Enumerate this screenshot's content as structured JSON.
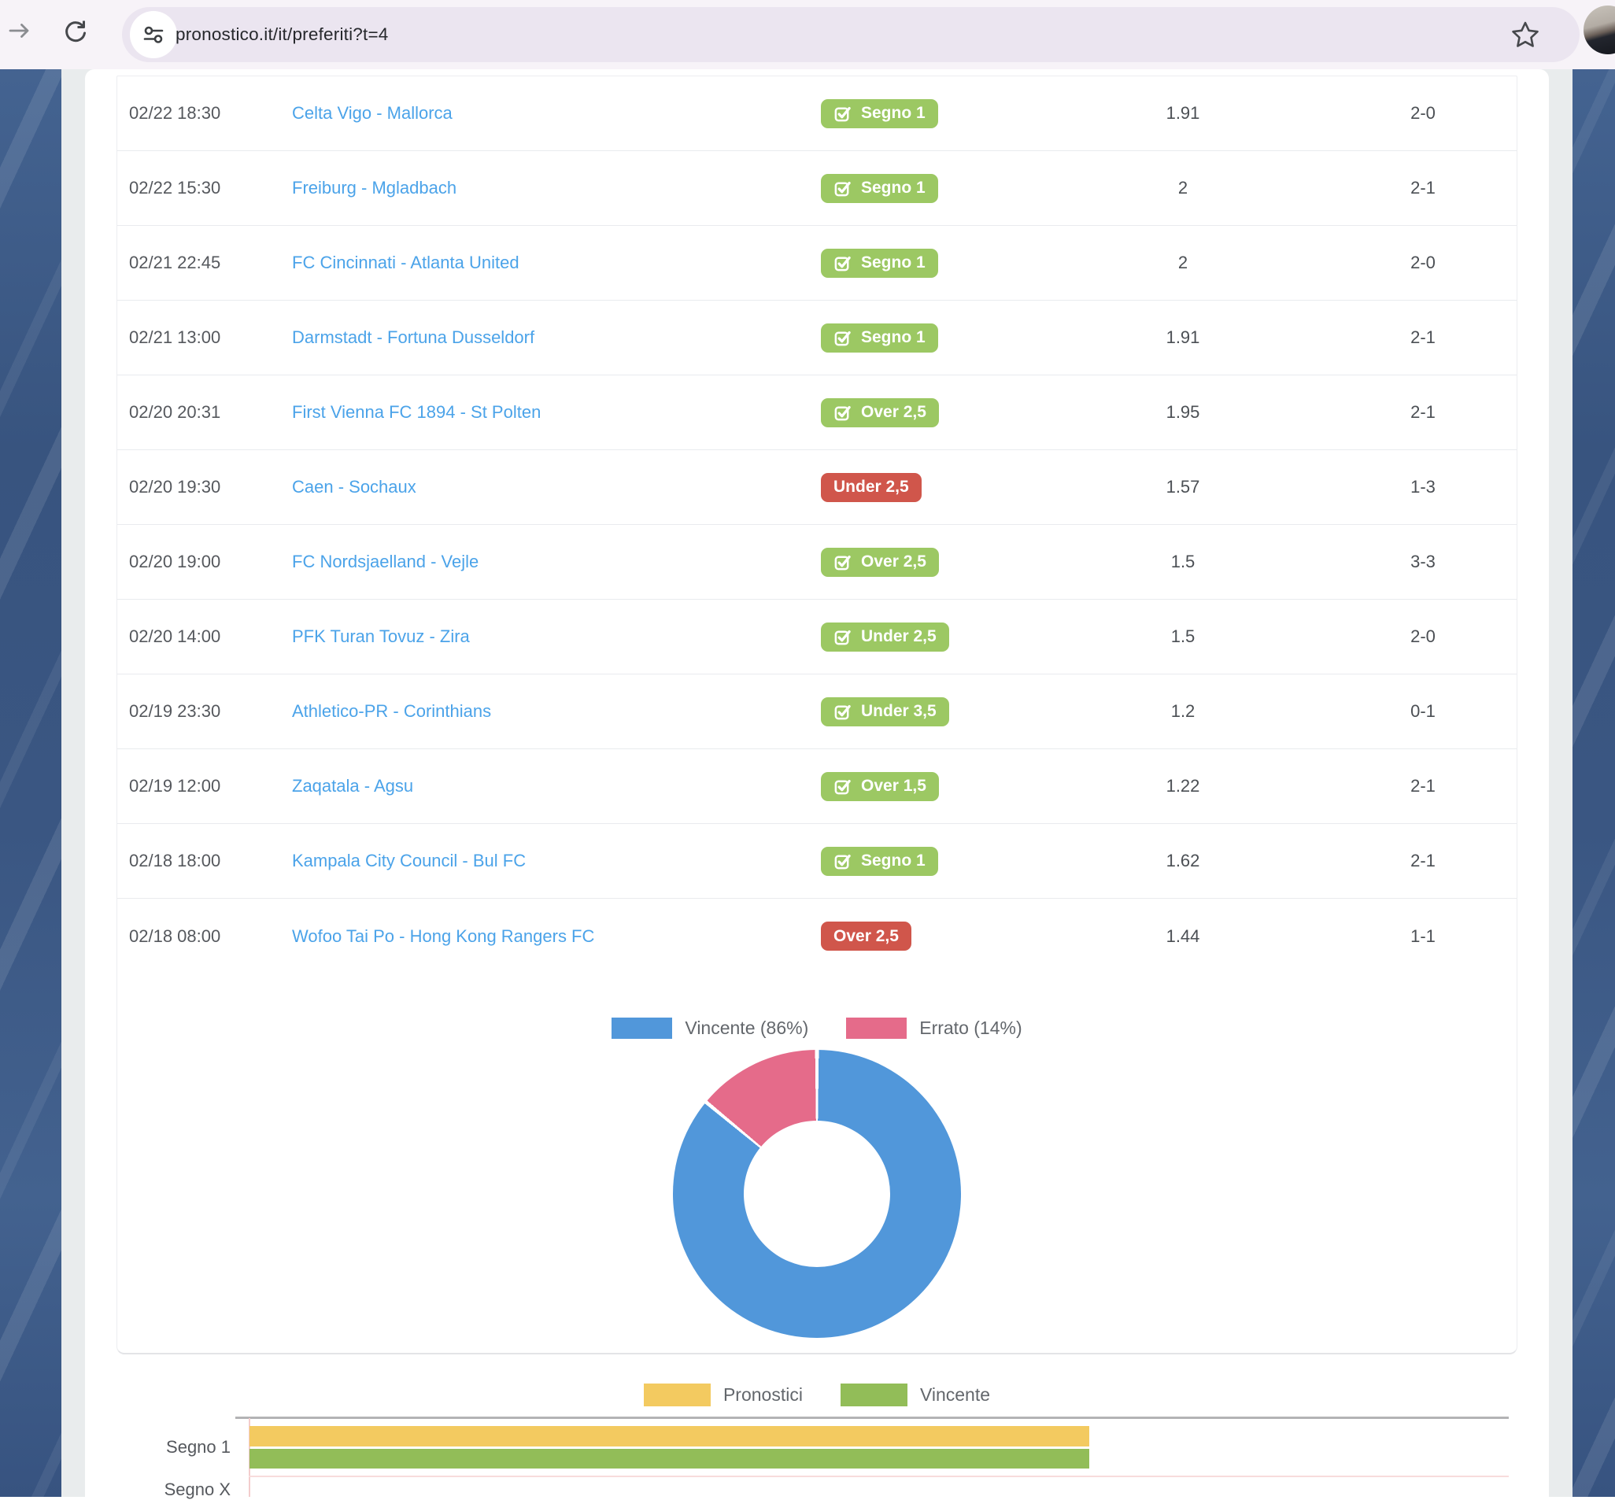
{
  "browser": {
    "url": "pronostico.it/it/preferiti?t=4",
    "icons": [
      "forward-arrow",
      "reload",
      "tune",
      "bookmark-star",
      "profile-avatar"
    ]
  },
  "table": {
    "rows": [
      {
        "time": "02/22 18:30",
        "match": "Celta Vigo - Mallorca",
        "bet": "Segno 1",
        "won": true,
        "odds": "1.91",
        "result": "2-0"
      },
      {
        "time": "02/22 15:30",
        "match": "Freiburg - Mgladbach",
        "bet": "Segno 1",
        "won": true,
        "odds": "2",
        "result": "2-1"
      },
      {
        "time": "02/21 22:45",
        "match": "FC Cincinnati - Atlanta United",
        "bet": "Segno 1",
        "won": true,
        "odds": "2",
        "result": "2-0"
      },
      {
        "time": "02/21 13:00",
        "match": "Darmstadt - Fortuna Dusseldorf",
        "bet": "Segno 1",
        "won": true,
        "odds": "1.91",
        "result": "2-1"
      },
      {
        "time": "02/20 20:31",
        "match": "First Vienna FC 1894 - St Polten",
        "bet": "Over 2,5",
        "won": true,
        "odds": "1.95",
        "result": "2-1"
      },
      {
        "time": "02/20 19:30",
        "match": "Caen - Sochaux",
        "bet": "Under 2,5",
        "won": false,
        "odds": "1.57",
        "result": "1-3"
      },
      {
        "time": "02/20 19:00",
        "match": "FC Nordsjaelland - Vejle",
        "bet": "Over 2,5",
        "won": true,
        "odds": "1.5",
        "result": "3-3"
      },
      {
        "time": "02/20 14:00",
        "match": "PFK Turan Tovuz - Zira",
        "bet": "Under 2,5",
        "won": true,
        "odds": "1.5",
        "result": "2-0"
      },
      {
        "time": "02/19 23:30",
        "match": "Athletico-PR - Corinthians",
        "bet": "Under 3,5",
        "won": true,
        "odds": "1.2",
        "result": "0-1"
      },
      {
        "time": "02/19 12:00",
        "match": "Zaqatala - Agsu",
        "bet": "Over 1,5",
        "won": true,
        "odds": "1.22",
        "result": "2-1"
      },
      {
        "time": "02/18 18:00",
        "match": "Kampala City Council - Bul FC",
        "bet": "Segno 1",
        "won": true,
        "odds": "1.62",
        "result": "2-1"
      },
      {
        "time": "02/18 08:00",
        "match": "Wofoo Tai Po - Hong Kong Rangers FC",
        "bet": "Over 2,5",
        "won": false,
        "odds": "1.44",
        "result": "1-1"
      }
    ],
    "badge_colors": {
      "won": "#9cc863",
      "lost": "#d0564b"
    }
  },
  "chart_data": [
    {
      "type": "pie",
      "subtype": "donut",
      "labels": [
        "Vincente",
        "Errato"
      ],
      "legend_labels": [
        "Vincente (86%)",
        "Errato (14%)"
      ],
      "values": [
        86,
        14
      ],
      "colors": [
        "#5197da",
        "#e56b8a"
      ],
      "legend_position": "top",
      "cutout_percent": 51,
      "start_angle_deg": 0,
      "direction": "clockwise"
    },
    {
      "type": "bar",
      "orientation": "horizontal",
      "categories": [
        "Segno 1",
        "Segno X"
      ],
      "series": [
        {
          "name": "Pronostici",
          "color": "#f3ca60",
          "values": [
            5,
            0
          ]
        },
        {
          "name": "Vincente",
          "color": "#92bd58",
          "values": [
            5,
            0
          ]
        }
      ],
      "xlim": [
        0,
        7.5
      ],
      "legend_position": "top",
      "grid": true,
      "gridline_color": "#f3cdcd",
      "axis_color": "#b3b3b5"
    }
  ]
}
